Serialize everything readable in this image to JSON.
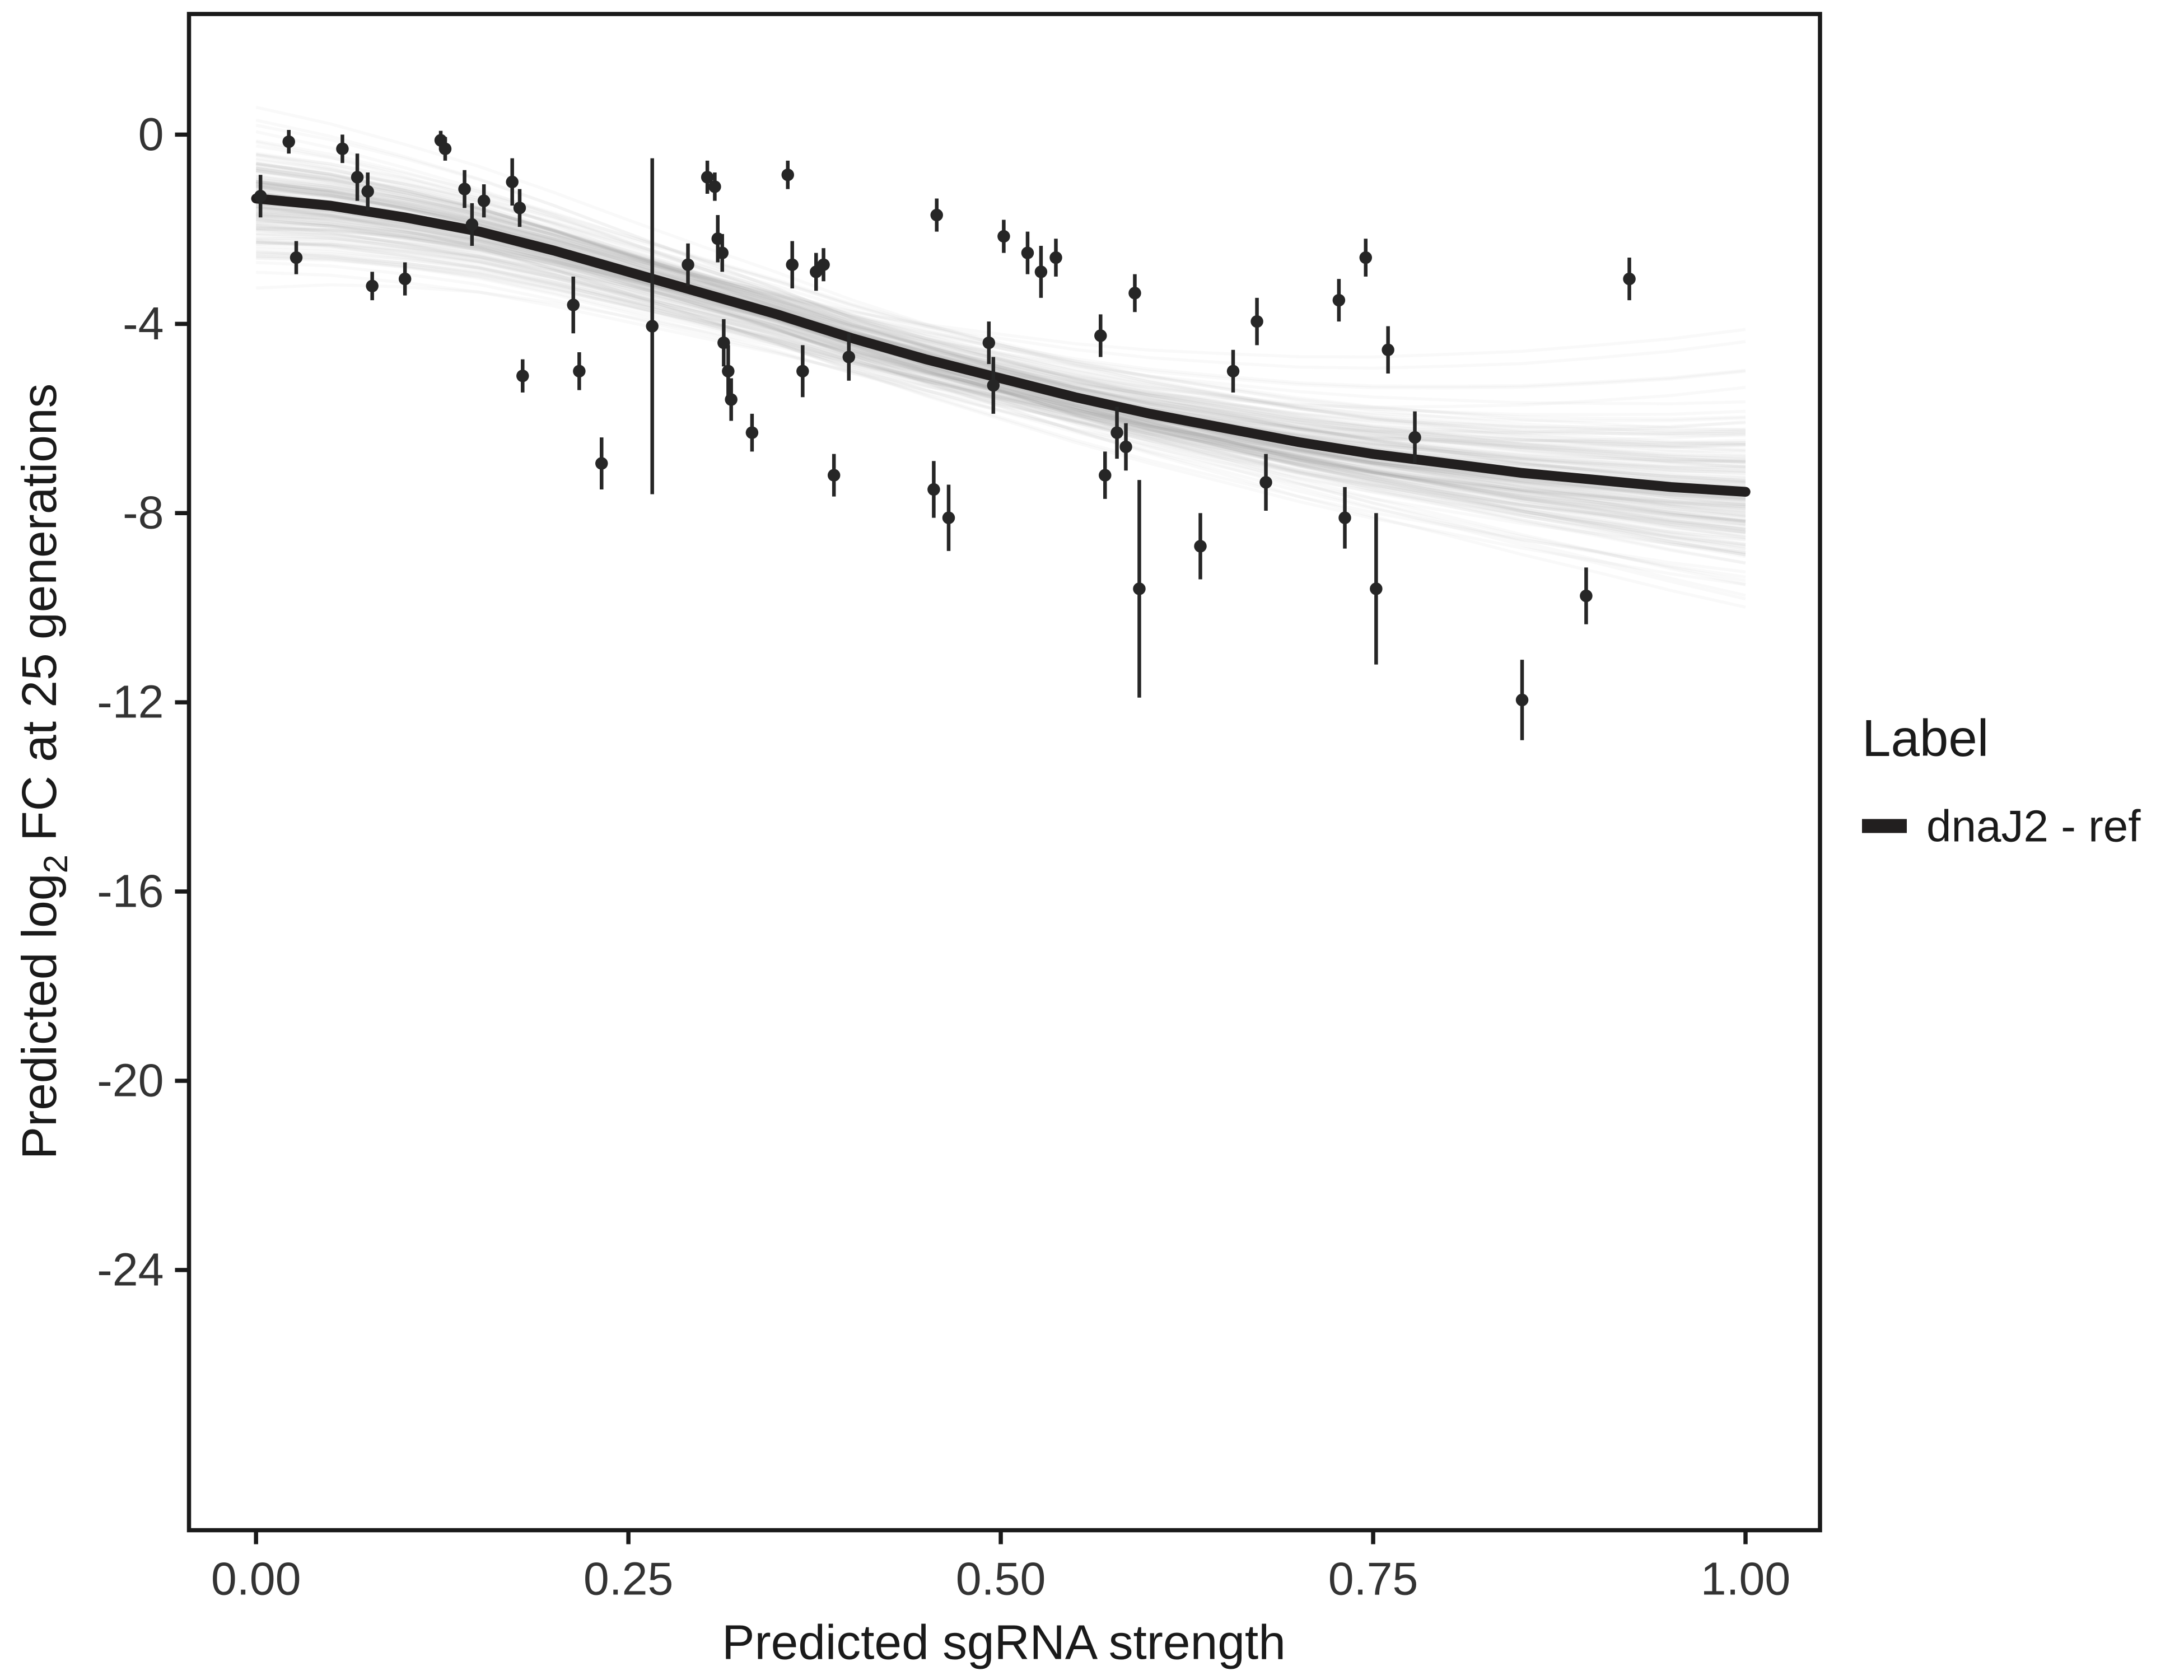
{
  "chart_data": {
    "type": "scatter",
    "title": "",
    "xlabel": "Predicted sgRNA strength",
    "ylabel": "Predicted log2 FC at 25 generations",
    "ylabel_parts": {
      "pre": "Predicted  log",
      "sub": "2",
      "post": " FC at 25 generations"
    },
    "xlim": [
      -0.045,
      1.05
    ],
    "ylim": [
      -29.5,
      2.55
    ],
    "x_ticks": [
      "0.00",
      "0.25",
      "0.50",
      "0.75",
      "1.00"
    ],
    "x_tick_values": [
      0,
      0.25,
      0.5,
      0.75,
      1.0
    ],
    "y_ticks": [
      "0",
      "-4",
      "-8",
      "-12",
      "-16",
      "-20",
      "-24"
    ],
    "y_tick_values": [
      0,
      -4,
      -8,
      -12,
      -16,
      -20,
      -24
    ],
    "grid": false,
    "colors": {
      "point": "#262626",
      "curve": "#221f1f",
      "spaghetti": "#8a8a8a",
      "axis": "#1a1a1a",
      "tick_text": "#333333"
    },
    "legend": {
      "title": "Label",
      "position": "right",
      "entries": [
        {
          "label": "dnaJ2 - ref",
          "color": "#221f1f",
          "type": "line"
        }
      ]
    },
    "points": [
      [
        0.003,
        -1.3,
        0.45
      ],
      [
        0.022,
        -0.15,
        0.25
      ],
      [
        0.027,
        -2.6,
        0.35
      ],
      [
        0.058,
        -0.3,
        0.3
      ],
      [
        0.068,
        -0.9,
        0.5
      ],
      [
        0.075,
        -1.2,
        0.4
      ],
      [
        0.078,
        -3.2,
        0.3
      ],
      [
        0.1,
        -3.05,
        0.35
      ],
      [
        0.124,
        -0.12,
        0.2
      ],
      [
        0.127,
        -0.3,
        0.25
      ],
      [
        0.14,
        -1.15,
        0.4
      ],
      [
        0.145,
        -1.9,
        0.45
      ],
      [
        0.153,
        -1.4,
        0.35
      ],
      [
        0.172,
        -1.0,
        0.5
      ],
      [
        0.177,
        -1.55,
        0.4
      ],
      [
        0.179,
        -5.1,
        0.35
      ],
      [
        0.213,
        -3.6,
        0.6
      ],
      [
        0.217,
        -5.0,
        0.4
      ],
      [
        0.232,
        -6.95,
        0.55
      ],
      [
        0.266,
        -4.05,
        3.55
      ],
      [
        0.29,
        -2.75,
        0.45
      ],
      [
        0.303,
        -0.9,
        0.35
      ],
      [
        0.308,
        -1.1,
        0.3
      ],
      [
        0.31,
        -2.2,
        0.5
      ],
      [
        0.313,
        -2.5,
        0.4
      ],
      [
        0.314,
        -4.4,
        0.5
      ],
      [
        0.317,
        -5.0,
        0.55
      ],
      [
        0.319,
        -5.6,
        0.45
      ],
      [
        0.333,
        -6.3,
        0.4
      ],
      [
        0.357,
        -0.85,
        0.3
      ],
      [
        0.36,
        -2.75,
        0.5
      ],
      [
        0.367,
        -5.0,
        0.55
      ],
      [
        0.376,
        -2.9,
        0.4
      ],
      [
        0.381,
        -2.75,
        0.35
      ],
      [
        0.388,
        -7.2,
        0.45
      ],
      [
        0.398,
        -4.7,
        0.5
      ],
      [
        0.455,
        -7.5,
        0.6
      ],
      [
        0.457,
        -1.7,
        0.35
      ],
      [
        0.465,
        -8.1,
        0.7
      ],
      [
        0.492,
        -4.4,
        0.45
      ],
      [
        0.495,
        -5.3,
        0.6
      ],
      [
        0.502,
        -2.15,
        0.35
      ],
      [
        0.518,
        -2.5,
        0.45
      ],
      [
        0.527,
        -2.9,
        0.55
      ],
      [
        0.537,
        -2.6,
        0.4
      ],
      [
        0.567,
        -4.25,
        0.45
      ],
      [
        0.57,
        -7.2,
        0.5
      ],
      [
        0.578,
        -6.3,
        0.55
      ],
      [
        0.584,
        -6.6,
        0.5
      ],
      [
        0.59,
        -3.35,
        0.4
      ],
      [
        0.593,
        -9.6,
        2.3
      ],
      [
        0.634,
        -8.7,
        0.7
      ],
      [
        0.656,
        -5.0,
        0.45
      ],
      [
        0.672,
        -3.95,
        0.5
      ],
      [
        0.678,
        -7.35,
        0.6
      ],
      [
        0.727,
        -3.5,
        0.45
      ],
      [
        0.731,
        -8.1,
        0.65
      ],
      [
        0.745,
        -2.6,
        0.4
      ],
      [
        0.752,
        -9.6,
        1.6
      ],
      [
        0.76,
        -4.55,
        0.5
      ],
      [
        0.778,
        -6.4,
        0.55
      ],
      [
        0.85,
        -11.95,
        0.85
      ],
      [
        0.893,
        -9.75,
        0.6
      ],
      [
        0.922,
        -3.05,
        0.45
      ]
    ],
    "fit_curve": {
      "x": [
        0,
        0.05,
        0.1,
        0.15,
        0.2,
        0.25,
        0.3,
        0.35,
        0.4,
        0.45,
        0.5,
        0.55,
        0.6,
        0.65,
        0.7,
        0.75,
        0.8,
        0.85,
        0.9,
        0.95,
        1.0
      ],
      "y": [
        -1.35,
        -1.5,
        -1.75,
        -2.05,
        -2.45,
        -2.9,
        -3.35,
        -3.8,
        -4.3,
        -4.75,
        -5.15,
        -5.55,
        -5.9,
        -6.2,
        -6.5,
        -6.75,
        -6.95,
        -7.15,
        -7.3,
        -7.45,
        -7.55
      ],
      "width": 7
    },
    "uncertainty": {
      "style": "spaghetti",
      "n_draws": 170,
      "opacity": 0.055,
      "sd_left": 0.6,
      "sd_center": 0.35,
      "sd_right": 1.05
    }
  }
}
